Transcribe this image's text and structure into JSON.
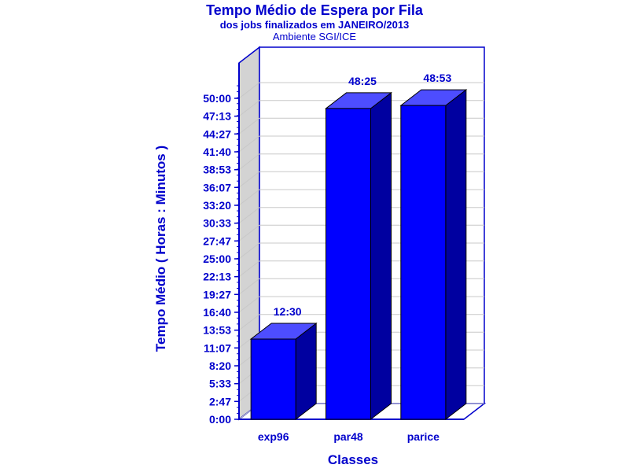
{
  "chart_data": {
    "type": "bar",
    "title": "Tempo Médio de Espera por Fila",
    "subtitle_1": "dos jobs finalizados em JANEIRO/2013",
    "subtitle_2": "Ambiente SGI/ICE",
    "xlabel": "Classes",
    "ylabel": "Tempo Médio ( Horas : Minutos )",
    "categories": [
      "exp96",
      "par48",
      "parice"
    ],
    "values": [
      750,
      2905,
      2933
    ],
    "value_labels": [
      "12:30",
      "48:25",
      "48:53"
    ],
    "ylim": [
      0,
      3000
    ],
    "y_ticks": [
      0,
      167,
      333,
      500,
      667,
      833,
      1000,
      1167,
      1333,
      1500,
      1667,
      1833,
      2000,
      2167,
      2333,
      2500,
      2667,
      2833,
      3000
    ],
    "y_tick_labels": [
      "0:00",
      "2:47",
      "5:33",
      "8:20",
      "11:07",
      "13:53",
      "16:40",
      "19:27",
      "22:13",
      "25:00",
      "27:47",
      "30:33",
      "33:20",
      "36:07",
      "38:53",
      "41:40",
      "44:27",
      "47:13",
      "50:00"
    ],
    "grid": true,
    "bar_color": "#0000ff",
    "bar_side_color": "#0000a0",
    "bar_top_color": "#4d4dff",
    "axis_color": "#0000cc"
  }
}
